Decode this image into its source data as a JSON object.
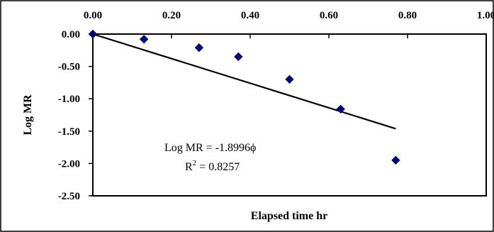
{
  "chart_data": {
    "type": "scatter",
    "title": "",
    "xlabel": "Elapsed time hr",
    "ylabel": "Log MR",
    "xlim": [
      0,
      1
    ],
    "ylim": [
      -2.5,
      0
    ],
    "x_ticks": [
      "0.00",
      "0.20",
      "0.40",
      "0.60",
      "0.80",
      "1.00"
    ],
    "y_ticks": [
      "0.00",
      "-0.50",
      "-1.00",
      "-1.50",
      "-2.00",
      "-2.50"
    ],
    "x_axis_position": "top",
    "grid": false,
    "legend": "none",
    "series": [
      {
        "marker": "diamond",
        "color": "#000080",
        "x": [
          0.0,
          0.13,
          0.27,
          0.37,
          0.5,
          0.63,
          0.77
        ],
        "y": [
          0.0,
          -0.08,
          -0.21,
          -0.35,
          -0.7,
          -1.16,
          -1.95
        ]
      }
    ],
    "trendline": {
      "type": "linear",
      "slope": -1.8996,
      "intercept": 0,
      "x_range": [
        0,
        0.77
      ],
      "color": "#000000"
    },
    "annotations": {
      "equation": "Log MR = -1.8996ϕ",
      "r2_prefix": "R",
      "r2_exponent": "2",
      "r2_suffix": " = 0.8257"
    }
  }
}
